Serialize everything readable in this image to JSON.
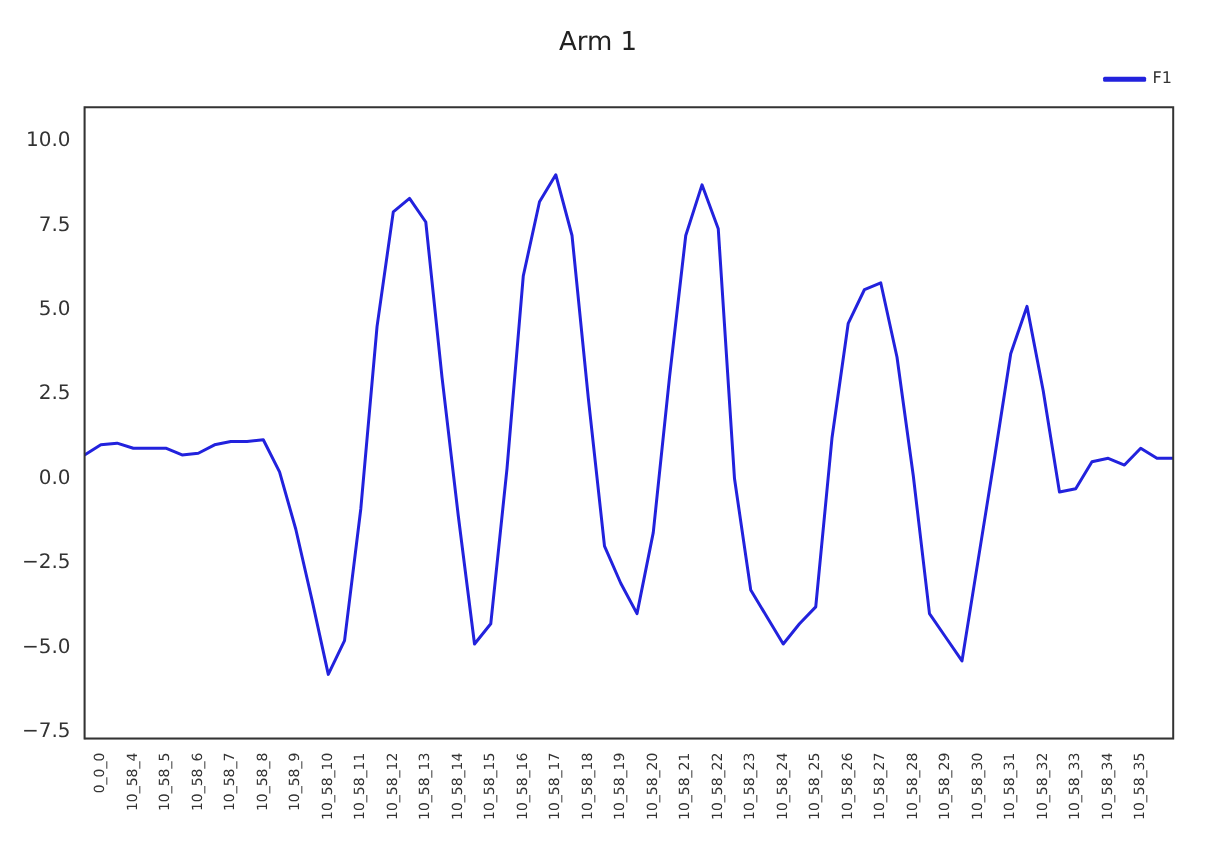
{
  "chart_data": {
    "type": "line",
    "title": "Arm 1",
    "categories": [
      null,
      "0_0_0",
      null,
      "10_58_4",
      null,
      "10_58_5",
      null,
      "10_58_6",
      null,
      "10_58_7",
      null,
      "10_58_8",
      null,
      "10_58_9",
      null,
      "10_58_10",
      null,
      "10_58_11",
      null,
      "10_58_12",
      null,
      "10_58_13",
      null,
      "10_58_14",
      null,
      "10_58_15",
      null,
      "10_58_16",
      null,
      "10_58_17",
      null,
      "10_58_18",
      null,
      "10_58_19",
      null,
      "10_58_20",
      null,
      "10_58_21",
      null,
      "10_58_22",
      null,
      "10_58_23",
      null,
      "10_58_24",
      null,
      "10_58_25",
      null,
      "10_58_26",
      null,
      "10_58_27",
      null,
      "10_58_28",
      null,
      "10_58_29",
      null,
      "10_58_30",
      null,
      "10_58_31",
      null,
      "10_58_32",
      null,
      "10_58_33",
      null,
      "10_58_34",
      null,
      "10_58_35",
      null,
      null
    ],
    "series": [
      {
        "name": "F1",
        "color": "#2222dd",
        "values": [
          0.7,
          1.0,
          1.05,
          0.9,
          0.9,
          0.9,
          0.7,
          0.75,
          1.0,
          1.1,
          1.1,
          1.15,
          0.2,
          -1.5,
          -3.6,
          -5.8,
          -4.8,
          -0.9,
          4.5,
          7.9,
          8.3,
          7.6,
          3.0,
          -1.1,
          -4.9,
          -4.3,
          0.3,
          6.0,
          8.2,
          9.0,
          7.2,
          2.4,
          -2.0,
          -3.1,
          -4.0,
          -1.6,
          3.0,
          7.2,
          8.7,
          7.4,
          0.0,
          -3.3,
          -4.1,
          -4.9,
          -4.3,
          -3.8,
          1.2,
          4.6,
          5.6,
          5.8,
          3.6,
          0.1,
          -4.0,
          -4.7,
          -5.4,
          -2.4,
          0.6,
          3.7,
          5.1,
          2.6,
          -0.4,
          -0.3,
          0.5,
          0.6,
          0.4,
          0.9,
          0.6,
          0.6
        ]
      }
    ],
    "ylim": [
      -7.7,
      11
    ],
    "yticks": [
      {
        "value": -7.5,
        "label": "−7.5"
      },
      {
        "value": -5,
        "label": "−5.0"
      },
      {
        "value": -2.5,
        "label": "−2.5"
      },
      {
        "value": 0,
        "label": "0.0"
      },
      {
        "value": 2.5,
        "label": "2.5"
      },
      {
        "value": 5,
        "label": "5.0"
      },
      {
        "value": 7.5,
        "label": "7.5"
      },
      {
        "value": 10,
        "label": "10.0"
      }
    ],
    "grid": false,
    "legend": "top right",
    "marker": "none",
    "line_style": "solid"
  }
}
